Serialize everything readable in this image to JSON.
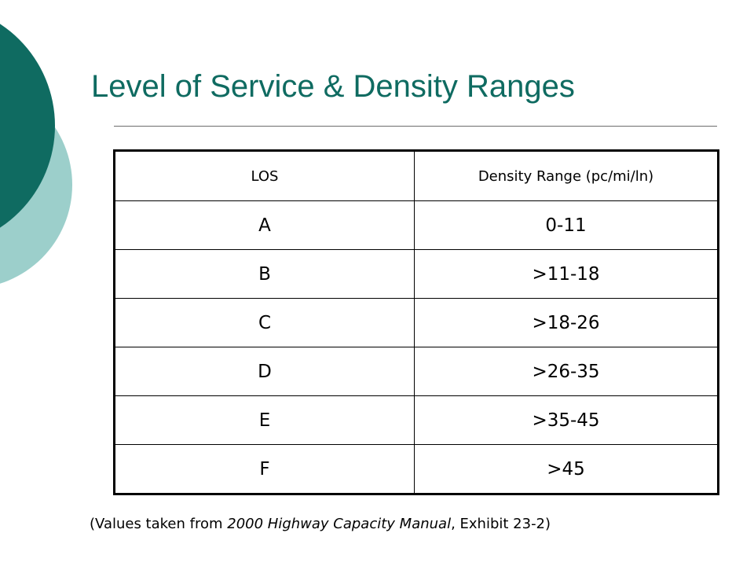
{
  "slide": {
    "title": "Level of Service & Density Ranges"
  },
  "theme": {
    "dark_teal": "#0f6b61",
    "light_teal": "#9ccfcb"
  },
  "table": {
    "headers": [
      "LOS",
      "Density Range (pc/mi/ln)"
    ],
    "rows": [
      {
        "los": "A",
        "range": "0-11"
      },
      {
        "los": "B",
        "range": ">11-18"
      },
      {
        "los": "C",
        "range": ">18-26"
      },
      {
        "los": "D",
        "range": ">26-35"
      },
      {
        "los": "E",
        "range": ">35-45"
      },
      {
        "los": "F",
        "range": ">45"
      }
    ]
  },
  "caption": {
    "prefix": "(Values taken from ",
    "source": "2000 Highway Capacity Manual",
    "suffix": ", Exhibit 23-2)"
  }
}
